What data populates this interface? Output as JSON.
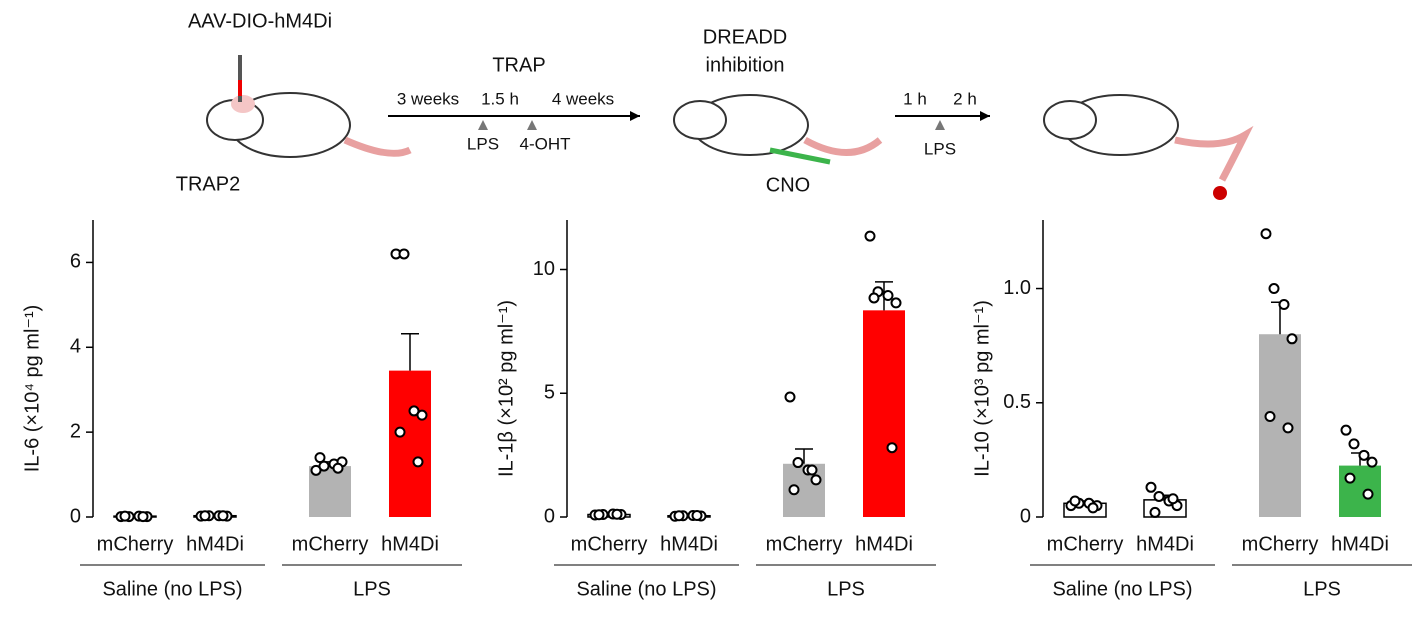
{
  "schematic": {
    "vector": "AAV-DIO-hM4Di",
    "mouse_line": "TRAP2",
    "trap": "TRAP",
    "t1": "3 weeks",
    "t2": "1.5 h",
    "t3": "4 weeks",
    "lps1": "LPS",
    "ohT": "4-OHT",
    "dreadd1": "DREADD",
    "dreadd2": "inhibition",
    "cno": "CNO",
    "t4": "1 h",
    "t5": "2 h",
    "lps2": "LPS"
  },
  "chart_data": [
    {
      "type": "bar",
      "ylabel": "IL-6 (×10⁴ pg ml⁻¹)",
      "categories": [
        "mCherry",
        "hM4Di",
        "mCherry",
        "hM4Di"
      ],
      "groups": [
        "Saline (no LPS)",
        "LPS"
      ],
      "values": [
        0.02,
        0.03,
        1.2,
        3.45
      ],
      "errors": [
        0.005,
        0.005,
        0.1,
        0.87
      ],
      "colors": [
        "#ffffff",
        "#ffffff",
        "#b3b3b3",
        "#ff0000"
      ],
      "points": [
        [
          0.01,
          0.01,
          0.02,
          0.01,
          0.02,
          0.01
        ],
        [
          0.02,
          0.03,
          0.03,
          0.02,
          0.03,
          0.03
        ],
        [
          1.1,
          1.2,
          1.25,
          1.3,
          1.4,
          1.15
        ],
        [
          6.2,
          6.2,
          2.5,
          2.4,
          2.0,
          1.3
        ]
      ],
      "ylim": [
        0,
        7
      ],
      "yticks": [
        0,
        2,
        4,
        6
      ]
    },
    {
      "type": "bar",
      "ylabel": "IL-1β (×10² pg ml⁻¹)",
      "categories": [
        "mCherry",
        "hM4Di",
        "mCherry",
        "hM4Di"
      ],
      "groups": [
        "Saline (no LPS)",
        "LPS"
      ],
      "values": [
        0.1,
        0.05,
        2.15,
        8.35
      ],
      "errors": [
        0.02,
        0.02,
        0.6,
        1.15
      ],
      "colors": [
        "#ffffff",
        "#ffffff",
        "#b3b3b3",
        "#ff0000"
      ],
      "points": [
        [
          0.08,
          0.1,
          0.12,
          0.1,
          0.09,
          0.11
        ],
        [
          0.03,
          0.05,
          0.06,
          0.04,
          0.05,
          0.06
        ],
        [
          4.85,
          2.2,
          1.9,
          1.5,
          1.1,
          1.9
        ],
        [
          11.35,
          9.1,
          8.95,
          8.65,
          8.85,
          2.8
        ]
      ],
      "ylim": [
        0,
        12
      ],
      "yticks": [
        0,
        5,
        10
      ]
    },
    {
      "type": "bar",
      "ylabel": "IL-10 (×10³ pg ml⁻¹)",
      "categories": [
        "mCherry",
        "hM4Di",
        "mCherry",
        "hM4Di"
      ],
      "groups": [
        "Saline (no LPS)",
        "LPS"
      ],
      "values": [
        0.06,
        0.075,
        0.8,
        0.225
      ],
      "errors": [
        0.01,
        0.02,
        0.14,
        0.055
      ],
      "colors": [
        "#ffffff",
        "#ffffff",
        "#b3b3b3",
        "#3cb44b"
      ],
      "points": [
        [
          0.05,
          0.06,
          0.06,
          0.05,
          0.07,
          0.04
        ],
        [
          0.13,
          0.09,
          0.07,
          0.05,
          0.02,
          0.08
        ],
        [
          1.24,
          1.0,
          0.93,
          0.78,
          0.44,
          0.39
        ],
        [
          0.38,
          0.32,
          0.27,
          0.24,
          0.17,
          0.1
        ]
      ],
      "ylim": [
        0,
        1.3
      ],
      "yticks": [
        0,
        {
          "value": 0.5,
          "label": "0.5"
        },
        {
          "value": 1.0,
          "label": "1.0"
        }
      ]
    }
  ]
}
